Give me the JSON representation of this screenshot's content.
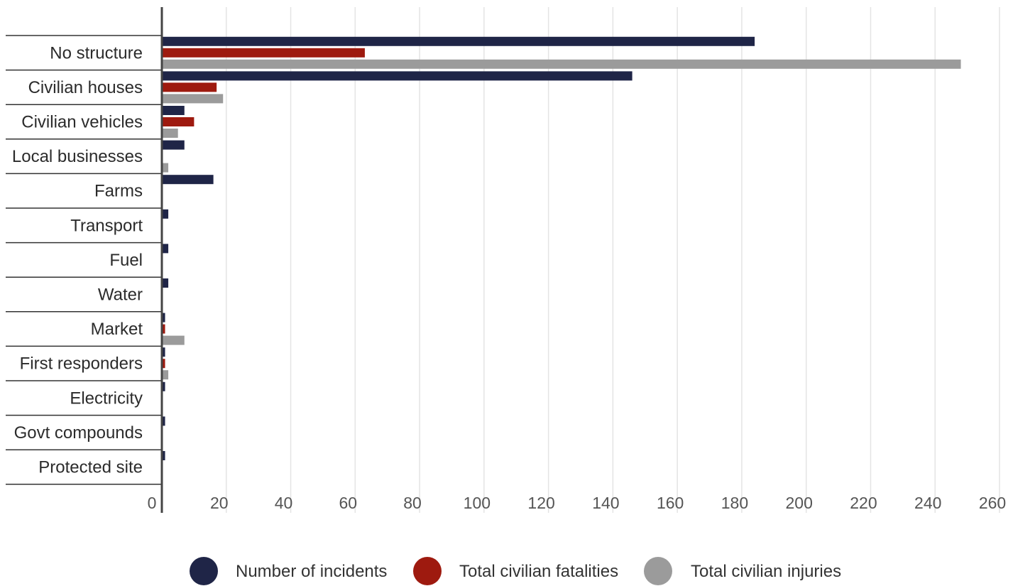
{
  "chart_data": {
    "type": "bar",
    "orientation": "horizontal",
    "title": "",
    "xlabel": "",
    "ylabel": "",
    "xlim": [
      0,
      260
    ],
    "x_ticks": [
      0,
      20,
      40,
      60,
      80,
      100,
      120,
      140,
      160,
      180,
      200,
      220,
      240,
      260
    ],
    "grid": true,
    "legend_position": "bottom",
    "categories": [
      "No structure",
      "Civilian houses",
      "Civilian vehicles",
      "Local businesses",
      "Farms",
      "Transport",
      "Fuel",
      "Water",
      "Market",
      "First responders",
      "Electricity",
      "Govt compounds",
      "Protected site"
    ],
    "series": [
      {
        "name": "Number of incidents",
        "color": "#1f2547",
        "values": [
          184,
          146,
          7,
          7,
          16,
          2,
          2,
          2,
          1,
          1,
          1,
          1,
          1
        ]
      },
      {
        "name": "Total civilian fatalities",
        "color": "#9e1a0f",
        "values": [
          63,
          17,
          10,
          0,
          0,
          0,
          0,
          0,
          1,
          1,
          0,
          0,
          0
        ]
      },
      {
        "name": "Total civilian injuries",
        "color": "#9b9b9b",
        "values": [
          248,
          19,
          5,
          2,
          0,
          0,
          0,
          0,
          7,
          2,
          0,
          0,
          0
        ]
      }
    ]
  }
}
